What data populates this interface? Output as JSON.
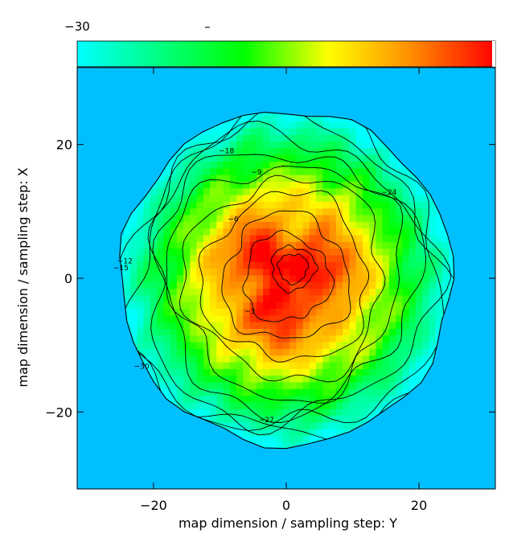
{
  "chart_data": {
    "type": "heatmap",
    "title": "",
    "xlabel": "map dimension / sampling step: Y",
    "ylabel": "map dimension / sampling step: X",
    "xlim": [
      -31.5,
      31.5
    ],
    "ylim": [
      -31.5,
      31.5
    ],
    "x_ticks": [
      -20,
      0,
      20
    ],
    "y_ticks": [
      -20,
      0,
      20
    ],
    "x_tick_labels": [
      "−20",
      "0",
      "20"
    ],
    "y_tick_labels": [
      "−20",
      "0",
      "20"
    ],
    "colorbar": {
      "label_min": "−30",
      "label_mid": "–",
      "colors": [
        "#00ffff",
        "#00ff7f",
        "#00ff00",
        "#ffff00",
        "#ff8c00",
        "#ff0000"
      ]
    },
    "background_color": "#00bfff",
    "disk_radius": 25,
    "peak_center": [
      0,
      0
    ],
    "contour_labels": [
      {
        "text": "−18",
        "x": -9,
        "y": 18.7
      },
      {
        "text": "−9",
        "x": -4.5,
        "y": 15.5
      },
      {
        "text": "−6",
        "x": -8,
        "y": 8.5
      },
      {
        "text": "−3",
        "x": -5.5,
        "y": -5.3
      },
      {
        "text": "−24",
        "x": 15.5,
        "y": 12.5
      },
      {
        "text": "−12",
        "x": -24.3,
        "y": 2.2
      },
      {
        "text": "−15",
        "x": -24.9,
        "y": 1.2
      },
      {
        "text": "−30",
        "x": -21.8,
        "y": -13.5
      },
      {
        "text": "−27",
        "x": -3.0,
        "y": -21.5
      }
    ],
    "grid": false,
    "legend": "none"
  }
}
